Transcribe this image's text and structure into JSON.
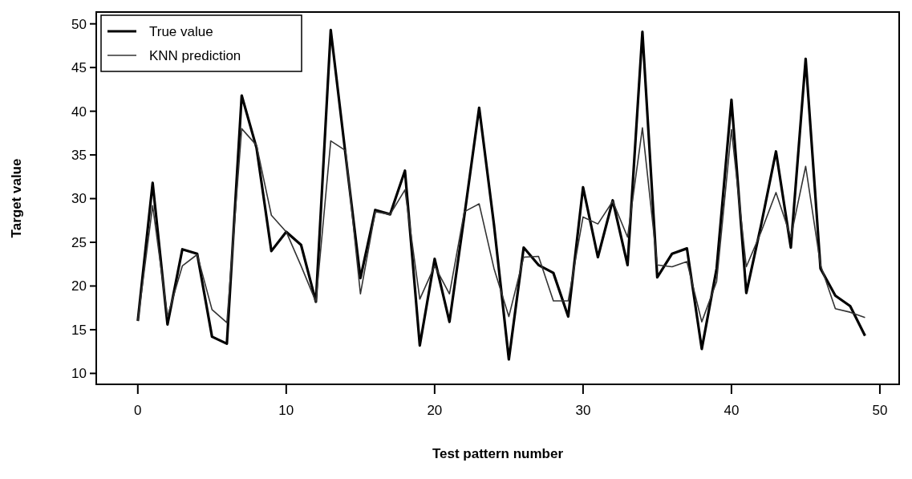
{
  "chart_data": {
    "type": "line",
    "xlabel": "Test pattern number",
    "ylabel": "Target value",
    "x": [
      0,
      1,
      2,
      3,
      4,
      5,
      6,
      7,
      8,
      9,
      10,
      11,
      12,
      13,
      14,
      15,
      16,
      17,
      18,
      19,
      20,
      21,
      22,
      23,
      24,
      25,
      26,
      27,
      28,
      29,
      30,
      31,
      32,
      33,
      34,
      35,
      36,
      37,
      38,
      39,
      40,
      41,
      42,
      43,
      44,
      45,
      46,
      47,
      48,
      49
    ],
    "series": [
      {
        "name": "True value",
        "color": "#000000",
        "values": [
          16,
          31.8,
          15.6,
          24.2,
          23.7,
          14.2,
          13.4,
          41.8,
          35.8,
          24,
          26.2,
          24.7,
          18.2,
          49.3,
          35,
          20.9,
          28.7,
          28.2,
          33.2,
          13.2,
          23.1,
          15.9,
          28,
          40.4,
          27,
          11.6,
          24.4,
          22.4,
          21.5,
          16.5,
          31.3,
          23.3,
          29.8,
          22.4,
          49.1,
          21,
          23.7,
          24.3,
          12.8,
          22,
          41.3,
          19.2,
          27,
          35.4,
          24.4,
          46,
          22,
          18.9,
          17.7,
          14.3
        ]
      },
      {
        "name": "KNN prediction",
        "color": "#333333",
        "values": [
          16,
          29.2,
          16.5,
          22.3,
          23.6,
          17.3,
          15.8,
          38,
          36.1,
          28.1,
          26.2,
          22.3,
          18.2,
          36.6,
          35.5,
          19.1,
          28.5,
          28.2,
          31,
          18.5,
          22.3,
          19.1,
          28.5,
          29.4,
          22,
          16.5,
          23.3,
          23.4,
          18.3,
          18.3,
          27.9,
          27.1,
          29.7,
          25.6,
          38.1,
          22.4,
          22.2,
          22.8,
          15.9,
          20.5,
          37.9,
          22.2,
          26.2,
          30.7,
          25.6,
          33.7,
          22.4,
          17.4,
          17,
          16.4
        ]
      }
    ],
    "xlim": [
      -2.8,
      51.3
    ],
    "ylim": [
      8.75,
      51.35
    ],
    "xticks": [
      0,
      10,
      20,
      30,
      40,
      50
    ],
    "yticks": [
      10,
      15,
      20,
      25,
      30,
      35,
      40,
      45,
      50
    ],
    "legend": "top left",
    "grid": false,
    "marker": "none",
    "line_style": "solid"
  }
}
